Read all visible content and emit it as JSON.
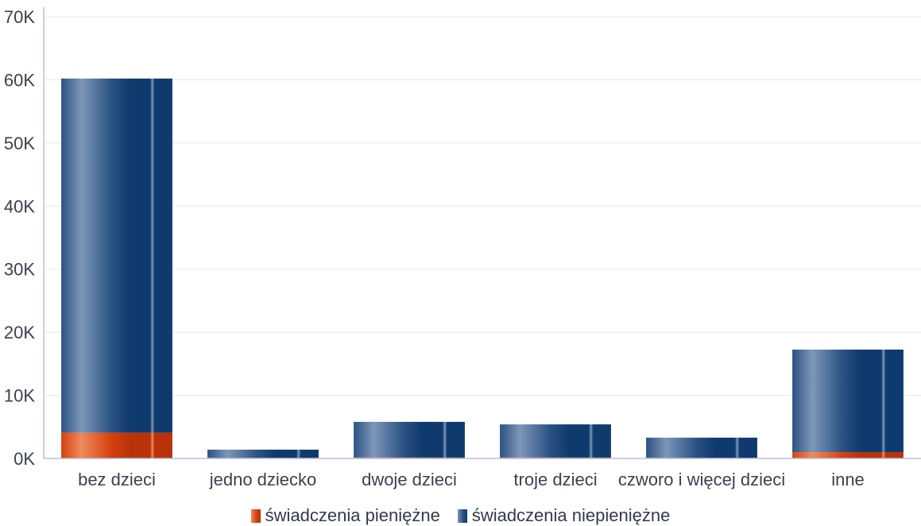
{
  "colors": {
    "pieniezne": "#d4410e",
    "niepieniezne": "#0f3a6e",
    "axis": "#bcbde0",
    "grid": "#e7e8f2",
    "text": "#3a4150"
  },
  "chart_data": {
    "type": "bar",
    "stacked": true,
    "categories": [
      "bez dzieci",
      "jedno dziecko",
      "dwoje dzieci",
      "troje dzieci",
      "czworo i więcej dzieci",
      "inne"
    ],
    "series": [
      {
        "name": "świadczenia pieniężne",
        "values": [
          4100,
          100,
          150,
          150,
          100,
          1000
        ]
      },
      {
        "name": "świadczenia niepieniężne",
        "values": [
          56100,
          1300,
          5650,
          5250,
          3200,
          16250
        ]
      }
    ],
    "title": "",
    "xlabel": "",
    "ylabel": "",
    "ylim": [
      0,
      70000
    ],
    "yticks": [
      0,
      10000,
      20000,
      30000,
      40000,
      50000,
      60000,
      70000
    ],
    "ytick_labels": [
      "0K",
      "10K",
      "20K",
      "30K",
      "40K",
      "50K",
      "60K",
      "70K"
    ],
    "grid": true,
    "legend_position": "bottom"
  }
}
